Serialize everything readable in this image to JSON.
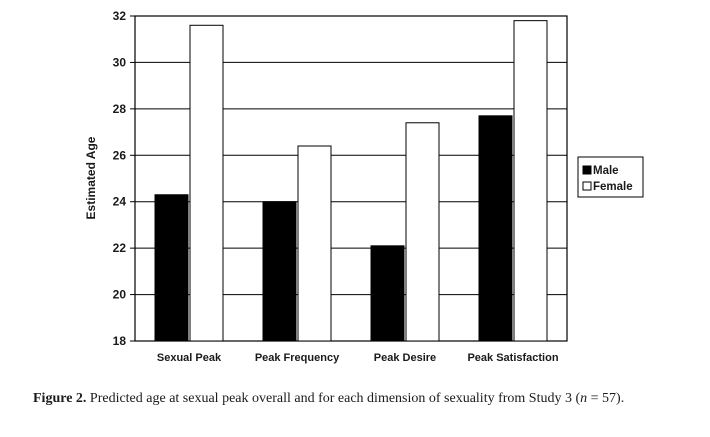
{
  "chart_data": {
    "type": "bar",
    "categories": [
      "Sexual Peak",
      "Peak Frequency",
      "Peak Desire",
      "Peak Satisfaction"
    ],
    "series": [
      {
        "name": "Male",
        "values": [
          24.3,
          24.0,
          22.1,
          27.7
        ],
        "color": "#000000"
      },
      {
        "name": "Female",
        "values": [
          31.6,
          26.4,
          27.4,
          31.8
        ],
        "color": "#ffffff"
      }
    ],
    "xlabel": "",
    "ylabel": "Estimated Age",
    "ylim": [
      18,
      32
    ],
    "yticks": [
      "18",
      "20",
      "22",
      "24",
      "26",
      "28",
      "30",
      "32"
    ],
    "grid": true,
    "legend": "right"
  },
  "caption": {
    "label": "Figure 2.",
    "text": " Predicted age at sexual peak overall and for each dimension of sexuality from Study 3 (",
    "n_symbol": "n",
    "n_value": " = 57)."
  }
}
